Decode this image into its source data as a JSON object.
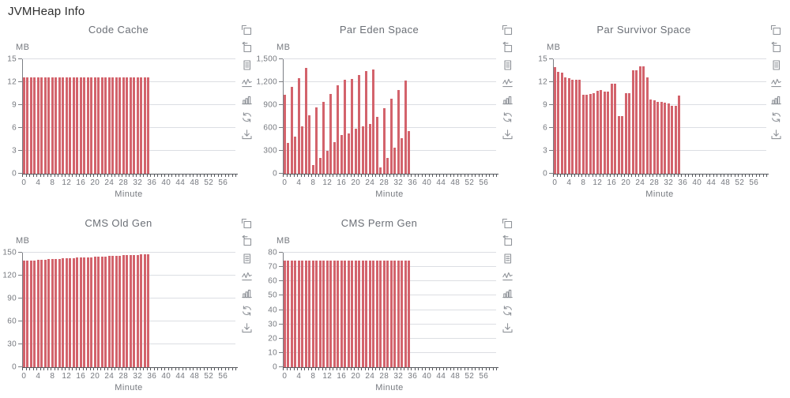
{
  "page": {
    "title": "JVMHeap Info"
  },
  "colors": {
    "bar": "#d3636c",
    "grid_line": "#dcdee3",
    "axis_line": "#55585d",
    "label_text": "#76797f",
    "title_text": "#6b6f76",
    "icon": "#8f9399"
  },
  "toolbox_icons": [
    "data-zoom-icon",
    "data-zoom-reset-icon",
    "data-view-icon",
    "line-chart-icon",
    "bar-chart-icon",
    "restore-icon",
    "save-image-icon"
  ],
  "x_axis": {
    "label": "Minute",
    "min": 0,
    "max": 59,
    "tick_labels": [
      "0",
      "4",
      "8",
      "12",
      "16",
      "20",
      "24",
      "28",
      "32",
      "36",
      "40",
      "44",
      "48",
      "52",
      "56"
    ]
  },
  "chart_data": [
    {
      "type": "bar",
      "title": "Code Cache",
      "ylabel": "MB",
      "xlabel": "Minute",
      "ylim": [
        0,
        15
      ],
      "yticks": [
        0,
        3,
        6,
        9,
        12,
        15
      ],
      "ytick_labels": [
        "0",
        "3",
        "6",
        "9",
        "12",
        "15"
      ],
      "grid": true,
      "x": [
        0,
        1,
        2,
        3,
        4,
        5,
        6,
        7,
        8,
        9,
        10,
        11,
        12,
        13,
        14,
        15,
        16,
        17,
        18,
        19,
        20,
        21,
        22,
        23,
        24,
        25,
        26,
        27,
        28,
        29,
        30,
        31,
        32,
        33,
        34,
        35
      ],
      "values": [
        12.6,
        12.6,
        12.6,
        12.6,
        12.6,
        12.6,
        12.6,
        12.6,
        12.6,
        12.6,
        12.6,
        12.6,
        12.6,
        12.6,
        12.6,
        12.6,
        12.6,
        12.6,
        12.6,
        12.6,
        12.6,
        12.6,
        12.6,
        12.6,
        12.6,
        12.6,
        12.6,
        12.6,
        12.6,
        12.6,
        12.6,
        12.6,
        12.6,
        12.6,
        12.6,
        12.6
      ]
    },
    {
      "type": "bar",
      "title": "Par Eden Space",
      "ylabel": "MB",
      "xlabel": "Minute",
      "ylim": [
        0,
        1500
      ],
      "yticks": [
        0,
        300,
        600,
        900,
        1200,
        1500
      ],
      "ytick_labels": [
        "0",
        "300",
        "600",
        "900",
        "1,200",
        "1,500"
      ],
      "grid": true,
      "x": [
        0,
        1,
        2,
        3,
        4,
        5,
        6,
        7,
        8,
        9,
        10,
        11,
        12,
        13,
        14,
        15,
        16,
        17,
        18,
        19,
        20,
        21,
        22,
        23,
        24,
        25,
        26,
        27,
        28,
        29,
        30,
        31,
        32,
        33,
        34,
        35
      ],
      "values": [
        1030,
        400,
        1140,
        490,
        1250,
        620,
        1390,
        770,
        110,
        870,
        210,
        940,
        300,
        1040,
        410,
        1160,
        510,
        1230,
        530,
        1240,
        590,
        1290,
        620,
        1350,
        650,
        1370,
        750,
        80,
        860,
        210,
        980,
        340,
        1100,
        470,
        1220,
        560
      ]
    },
    {
      "type": "bar",
      "title": "Par Survivor Space",
      "ylabel": "MB",
      "xlabel": "Minute",
      "ylim": [
        0,
        15
      ],
      "yticks": [
        0,
        3,
        6,
        9,
        12,
        15
      ],
      "ytick_labels": [
        "0",
        "3",
        "6",
        "9",
        "12",
        "15"
      ],
      "grid": true,
      "x": [
        0,
        1,
        2,
        3,
        4,
        5,
        6,
        7,
        8,
        9,
        10,
        11,
        12,
        13,
        14,
        15,
        16,
        17,
        18,
        19,
        20,
        21,
        22,
        23,
        24,
        25,
        26,
        27,
        28,
        29,
        30,
        31,
        32,
        33,
        34,
        35
      ],
      "values": [
        14.0,
        13.3,
        13.2,
        12.6,
        12.5,
        12.3,
        12.3,
        12.3,
        10.3,
        10.3,
        10.5,
        10.6,
        10.9,
        11.0,
        10.8,
        10.8,
        11.8,
        11.8,
        7.6,
        7.6,
        10.6,
        10.6,
        13.6,
        13.6,
        14.1,
        14.1,
        12.6,
        9.7,
        9.6,
        9.4,
        9.4,
        9.3,
        9.2,
        8.9,
        8.9,
        10.2
      ]
    },
    {
      "type": "bar",
      "title": "CMS Old Gen",
      "ylabel": "MB",
      "xlabel": "Minute",
      "ylim": [
        0,
        150
      ],
      "yticks": [
        0,
        30,
        60,
        90,
        120,
        150
      ],
      "ytick_labels": [
        "0",
        "30",
        "60",
        "90",
        "120",
        "150"
      ],
      "grid": true,
      "x": [
        0,
        1,
        2,
        3,
        4,
        5,
        6,
        7,
        8,
        9,
        10,
        11,
        12,
        13,
        14,
        15,
        16,
        17,
        18,
        19,
        20,
        21,
        22,
        23,
        24,
        25,
        26,
        27,
        28,
        29,
        30,
        31,
        32,
        33,
        34,
        35
      ],
      "values": [
        140,
        140,
        140,
        140,
        141,
        141,
        141,
        142,
        142,
        142,
        142,
        143,
        143,
        143,
        143,
        144,
        144,
        144,
        144,
        144,
        145,
        145,
        145,
        145,
        146,
        146,
        146,
        146,
        147,
        147,
        147,
        147,
        147,
        148,
        148,
        148
      ]
    },
    {
      "type": "bar",
      "title": "CMS Perm Gen",
      "ylabel": "MB",
      "xlabel": "Minute",
      "ylim": [
        0,
        80
      ],
      "yticks": [
        0,
        10,
        20,
        30,
        40,
        50,
        60,
        70,
        80
      ],
      "ytick_labels": [
        "0",
        "10",
        "20",
        "30",
        "40",
        "50",
        "60",
        "70",
        "80"
      ],
      "grid": true,
      "x": [
        0,
        1,
        2,
        3,
        4,
        5,
        6,
        7,
        8,
        9,
        10,
        11,
        12,
        13,
        14,
        15,
        16,
        17,
        18,
        19,
        20,
        21,
        22,
        23,
        24,
        25,
        26,
        27,
        28,
        29,
        30,
        31,
        32,
        33,
        34,
        35
      ],
      "values": [
        74.5,
        74.5,
        74.5,
        74.5,
        74.5,
        74.5,
        74.5,
        74.5,
        74.5,
        74.5,
        74.5,
        74.5,
        74.5,
        74.5,
        74.5,
        74.5,
        74.5,
        74.5,
        74.5,
        74.5,
        74.5,
        74.5,
        74.5,
        74.5,
        74.5,
        74.5,
        74.5,
        74.5,
        74.5,
        74.5,
        74.5,
        74.5,
        74.5,
        74.5,
        74.5,
        74.5
      ]
    }
  ]
}
